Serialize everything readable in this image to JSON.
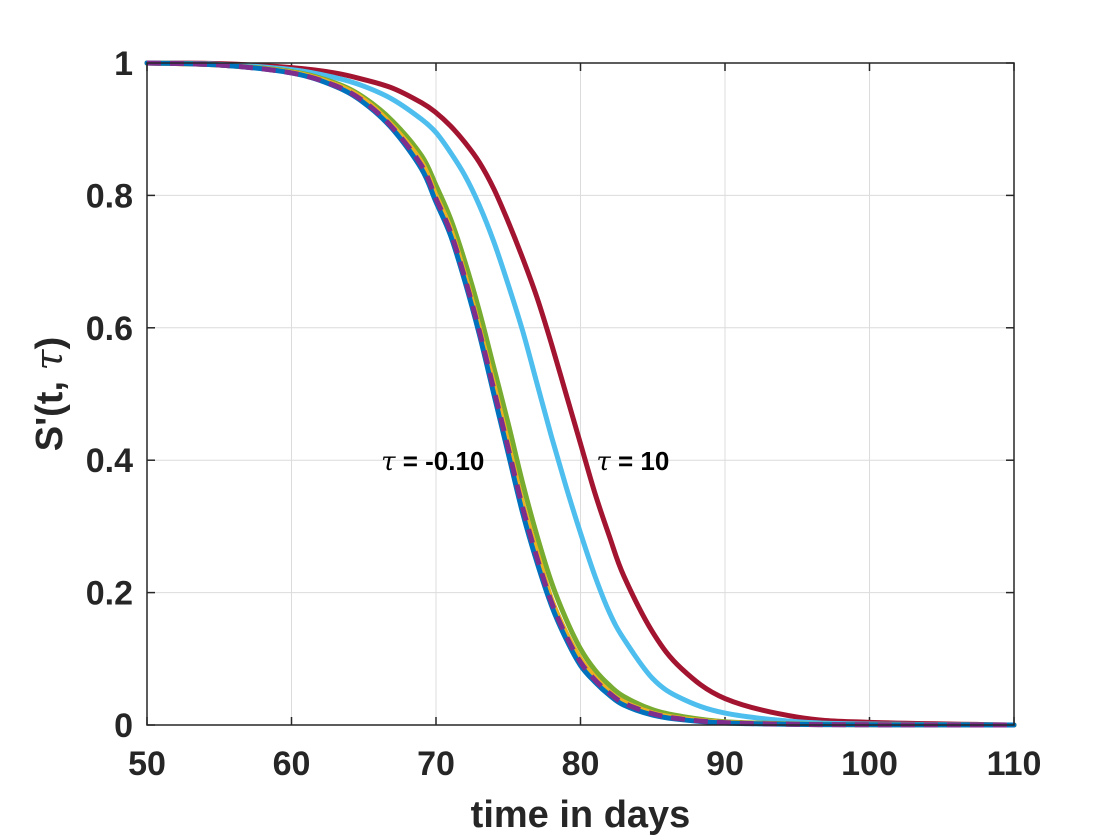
{
  "chart_data": {
    "type": "line",
    "title": "",
    "xlabel": "time in days",
    "ylabel_main": "S'(t, ",
    "ylabel_symbol": "τ",
    "ylabel_close": ")",
    "xlim": [
      50,
      110
    ],
    "ylim": [
      0,
      1
    ],
    "xticks": [
      50,
      60,
      70,
      80,
      90,
      100,
      110
    ],
    "yticks": [
      0,
      0.2,
      0.4,
      0.6,
      0.8,
      1
    ],
    "xtick_labels": [
      "50",
      "60",
      "70",
      "80",
      "90",
      "100",
      "110"
    ],
    "ytick_labels": [
      "0",
      "0.2",
      "0.4",
      "0.6",
      "0.8",
      "1"
    ],
    "grid": true,
    "legend": "none",
    "series": [
      {
        "color": "#0072BD",
        "dashed": false,
        "x": [
          50,
          55,
          60,
          63,
          65,
          67,
          69,
          70,
          71,
          72,
          73,
          74,
          75,
          76,
          77,
          78,
          79,
          80,
          81,
          82,
          83,
          85,
          87,
          90,
          95,
          100,
          110
        ],
        "y": [
          1.0,
          0.997,
          0.985,
          0.965,
          0.94,
          0.9,
          0.84,
          0.79,
          0.74,
          0.67,
          0.59,
          0.5,
          0.41,
          0.32,
          0.245,
          0.18,
          0.13,
          0.09,
          0.065,
          0.045,
          0.03,
          0.015,
          0.008,
          0.003,
          0.001,
          0.0003,
          0.0
        ]
      },
      {
        "color": "#EDB120",
        "dashed": false,
        "x": [
          50,
          55,
          60,
          63,
          65,
          67,
          69,
          70,
          71,
          72,
          73,
          74,
          75,
          76,
          77,
          78,
          79,
          80,
          81,
          82,
          83,
          85,
          87,
          90,
          95,
          100,
          110
        ],
        "y": [
          1.0,
          0.997,
          0.986,
          0.968,
          0.945,
          0.905,
          0.85,
          0.8,
          0.75,
          0.68,
          0.6,
          0.515,
          0.425,
          0.335,
          0.26,
          0.19,
          0.14,
          0.1,
          0.072,
          0.05,
          0.035,
          0.018,
          0.01,
          0.004,
          0.001,
          0.0004,
          0.0
        ]
      },
      {
        "color": "#77AC30",
        "dashed": false,
        "x": [
          50,
          55,
          60,
          63,
          65,
          67,
          69,
          70,
          71,
          72,
          73,
          74,
          75,
          76,
          77,
          78,
          79,
          80,
          81,
          82,
          83,
          85,
          87,
          90,
          95,
          100,
          110
        ],
        "y": [
          1.0,
          0.997,
          0.987,
          0.97,
          0.948,
          0.912,
          0.86,
          0.815,
          0.765,
          0.7,
          0.625,
          0.54,
          0.455,
          0.365,
          0.285,
          0.215,
          0.16,
          0.115,
          0.083,
          0.06,
          0.043,
          0.023,
          0.013,
          0.005,
          0.0015,
          0.0005,
          0.0
        ]
      },
      {
        "color": "#7E2F8E",
        "dashed": true,
        "x": [
          50,
          55,
          60,
          63,
          65,
          67,
          69,
          70,
          71,
          72,
          73,
          74,
          75,
          76,
          77,
          78,
          79,
          80,
          81,
          82,
          83,
          85,
          87,
          90,
          95,
          100,
          110
        ],
        "y": [
          1.0,
          0.997,
          0.985,
          0.966,
          0.942,
          0.902,
          0.845,
          0.795,
          0.745,
          0.675,
          0.595,
          0.507,
          0.418,
          0.328,
          0.252,
          0.185,
          0.135,
          0.095,
          0.068,
          0.048,
          0.033,
          0.017,
          0.009,
          0.0035,
          0.001,
          0.0003,
          0.0
        ]
      },
      {
        "color": "#4DBEEE",
        "dashed": false,
        "x": [
          50,
          55,
          60,
          63,
          65,
          67,
          69,
          70,
          71,
          72,
          73,
          74,
          75,
          76,
          77,
          78,
          79,
          80,
          81,
          82,
          83,
          85,
          87,
          90,
          95,
          100,
          110
        ],
        "y": [
          1.0,
          0.998,
          0.99,
          0.978,
          0.965,
          0.945,
          0.915,
          0.895,
          0.865,
          0.83,
          0.785,
          0.73,
          0.665,
          0.595,
          0.515,
          0.435,
          0.36,
          0.29,
          0.225,
          0.17,
          0.13,
          0.07,
          0.04,
          0.018,
          0.005,
          0.0015,
          0.0
        ]
      },
      {
        "color": "#A2142F",
        "dashed": false,
        "x": [
          50,
          55,
          60,
          63,
          65,
          67,
          69,
          70,
          71,
          72,
          73,
          74,
          75,
          76,
          77,
          78,
          79,
          80,
          81,
          82,
          83,
          85,
          87,
          90,
          95,
          100,
          110
        ],
        "y": [
          1.0,
          0.999,
          0.993,
          0.985,
          0.975,
          0.962,
          0.94,
          0.925,
          0.905,
          0.88,
          0.85,
          0.81,
          0.76,
          0.705,
          0.645,
          0.575,
          0.5,
          0.425,
          0.35,
          0.285,
          0.225,
          0.14,
          0.085,
          0.04,
          0.012,
          0.004,
          0.0
        ]
      }
    ],
    "annotations": [
      {
        "symbol": "τ",
        "text": " = -0.10",
        "x": 66.2,
        "y": 0.4
      },
      {
        "symbol": "τ",
        "text": " = 10",
        "x": 81.1,
        "y": 0.4
      }
    ]
  }
}
